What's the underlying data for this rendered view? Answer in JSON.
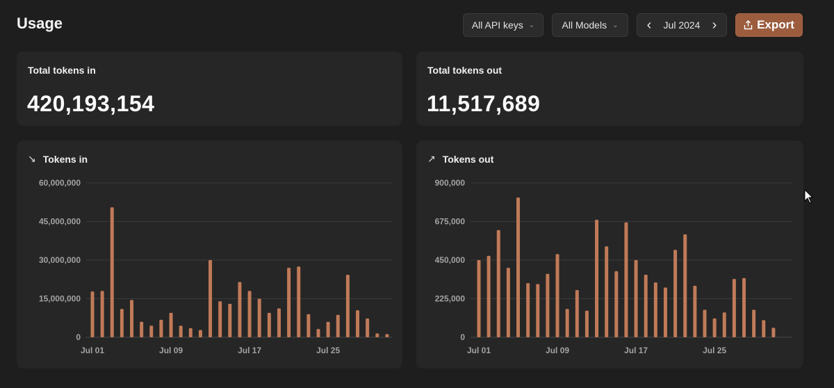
{
  "page": {
    "title": "Usage"
  },
  "toolbar": {
    "api_keys_label": "All API keys",
    "models_label": "All Models",
    "month_label": "Jul 2024",
    "export_label": "Export",
    "accent_color": "#9b5d3e"
  },
  "stats": {
    "tokens_in": {
      "label": "Total tokens in",
      "value": "420,193,154"
    },
    "tokens_out": {
      "label": "Total tokens out",
      "value": "11,517,689"
    }
  },
  "chart_data": [
    {
      "type": "bar",
      "title": "Tokens in",
      "icon": "arrow-down-right-icon",
      "bar_color": "#c07a58",
      "ylim": [
        0,
        60000000
      ],
      "y_ticks": [
        "0",
        "15,000,000",
        "30,000,000",
        "45,000,000",
        "60,000,000"
      ],
      "y_tick_values": [
        0,
        15000000,
        30000000,
        45000000,
        60000000
      ],
      "x_tick_labels": [
        "Jul 01",
        "Jul 09",
        "Jul 17",
        "Jul 25"
      ],
      "x_tick_days": [
        1,
        9,
        17,
        25
      ],
      "days": [
        1,
        2,
        3,
        4,
        5,
        6,
        7,
        8,
        9,
        10,
        11,
        12,
        13,
        14,
        15,
        16,
        17,
        18,
        19,
        20,
        21,
        22,
        23,
        24,
        25,
        26,
        27,
        28,
        29,
        30,
        31
      ],
      "values": [
        17800000,
        18000000,
        50500000,
        11000000,
        14500000,
        6000000,
        4500000,
        6800000,
        9500000,
        4500000,
        3500000,
        2800000,
        30000000,
        14000000,
        13000000,
        21500000,
        18000000,
        15000000,
        9500000,
        11200000,
        27000000,
        27500000,
        9000000,
        3200000,
        6000000,
        8700000,
        24300000,
        10500000,
        7300000,
        1500000,
        1200000
      ]
    },
    {
      "type": "bar",
      "title": "Tokens out",
      "icon": "arrow-up-right-icon",
      "bar_color": "#c07a58",
      "ylim": [
        0,
        900000
      ],
      "y_ticks": [
        "0",
        "225,000",
        "450,000",
        "675,000",
        "900,000"
      ],
      "y_tick_values": [
        0,
        225000,
        450000,
        675000,
        900000
      ],
      "x_tick_labels": [
        "Jul 01",
        "Jul 09",
        "Jul 17",
        "Jul 25"
      ],
      "x_tick_days": [
        1,
        9,
        17,
        25
      ],
      "days": [
        1,
        2,
        3,
        4,
        5,
        6,
        7,
        8,
        9,
        10,
        11,
        12,
        13,
        14,
        15,
        16,
        17,
        18,
        19,
        20,
        21,
        22,
        23,
        24,
        25,
        26,
        27,
        28,
        29,
        30,
        31
      ],
      "values": [
        450000,
        475000,
        625000,
        405000,
        815000,
        315000,
        310000,
        370000,
        485000,
        165000,
        275000,
        155000,
        685000,
        530000,
        385000,
        670000,
        450000,
        365000,
        320000,
        290000,
        510000,
        600000,
        300000,
        160000,
        110000,
        145000,
        340000,
        345000,
        160000,
        100000,
        55000
      ]
    }
  ]
}
